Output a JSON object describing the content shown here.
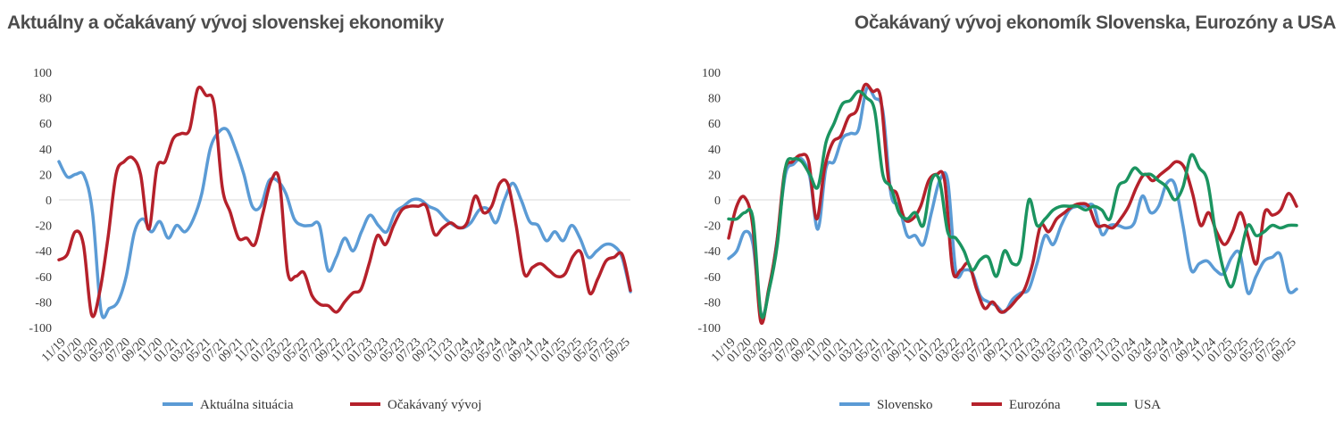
{
  "chart_data": [
    {
      "type": "line",
      "title": "Aktuálny a očakávaný vývoj slovenskej ekonomiky",
      "xlabel": "",
      "ylabel": "",
      "ylim": [
        -100,
        100
      ],
      "yticks": [
        "100",
        "80",
        "60",
        "40",
        "20",
        "0",
        "-20",
        "-40",
        "-60",
        "-80",
        "-100"
      ],
      "xtick_labels": [
        "11/19",
        "01/20",
        "03/20",
        "05/20",
        "07/20",
        "09/20",
        "11/20",
        "01/21",
        "03/21",
        "05/21",
        "07/21",
        "09/21",
        "11/21",
        "01/22",
        "03/22",
        "05/22",
        "07/22",
        "09/22",
        "11/22",
        "01/23",
        "03/23",
        "05/23",
        "07/23",
        "09/23",
        "11/23",
        "01/24",
        "03/24",
        "05/24",
        "07/24",
        "09/24",
        "11/24",
        "01/25",
        "03/25",
        "05/25",
        "07/25",
        "09/25"
      ],
      "grid": false,
      "legend_position": "bottom",
      "series": [
        {
          "name": "Aktuálna situácia",
          "color": "#5b9bd5",
          "values": [
            30,
            18,
            20,
            19,
            -10,
            -87,
            -85,
            -80,
            -60,
            -25,
            -15,
            -25,
            -17,
            -30,
            -20,
            -25,
            -15,
            5,
            40,
            53,
            55,
            40,
            20,
            -5,
            -5,
            15,
            15,
            5,
            -15,
            -20,
            -20,
            -20,
            -55,
            -45,
            -30,
            -40,
            -25,
            -12,
            -20,
            -25,
            -10,
            -5,
            0,
            0,
            -5,
            -8,
            -15,
            -20,
            -22,
            -18,
            -8,
            -7,
            -18,
            0,
            13,
            0,
            -17,
            -20,
            -32,
            -25,
            -32,
            -20,
            -30,
            -45,
            -40,
            -35,
            -36,
            -45,
            -72
          ]
        },
        {
          "name": "Očakávaný vývoj",
          "color": "#b5212b",
          "values": [
            -47,
            -43,
            -25,
            -35,
            -90,
            -72,
            -30,
            20,
            30,
            33,
            20,
            -23,
            25,
            30,
            48,
            52,
            55,
            87,
            82,
            75,
            10,
            -10,
            -30,
            -30,
            -35,
            -10,
            15,
            15,
            -56,
            -60,
            -57,
            -75,
            -82,
            -83,
            -88,
            -80,
            -73,
            -70,
            -50,
            -28,
            -35,
            -20,
            -8,
            -5,
            -5,
            -5,
            -27,
            -22,
            -18,
            -22,
            -18,
            3,
            -10,
            -5,
            13,
            12,
            -20,
            -58,
            -53,
            -50,
            -55,
            -60,
            -58,
            -44,
            -42,
            -73,
            -62,
            -48,
            -45,
            -43,
            -71
          ]
        }
      ]
    },
    {
      "type": "line",
      "title": "Očakávaný vývoj ekonomík Slovenska, Eurozóny a USA",
      "xlabel": "",
      "ylabel": "",
      "ylim": [
        -100,
        100
      ],
      "yticks": [
        "100",
        "80",
        "60",
        "40",
        "20",
        "0",
        "-20",
        "-40",
        "-60",
        "-80",
        "-100"
      ],
      "xtick_labels": [
        "11/19",
        "01/20",
        "03/20",
        "05/20",
        "07/20",
        "09/20",
        "11/20",
        "01/21",
        "03/21",
        "05/21",
        "07/21",
        "09/21",
        "11/21",
        "01/22",
        "03/22",
        "05/22",
        "07/22",
        "09/22",
        "11/22",
        "01/23",
        "03/23",
        "05/23",
        "07/23",
        "09/23",
        "11/23",
        "01/24",
        "03/24",
        "05/24",
        "07/24",
        "09/24",
        "11/24",
        "01/25",
        "03/25",
        "05/25",
        "07/25",
        "09/25"
      ],
      "grid": false,
      "legend_position": "bottom",
      "series": [
        {
          "name": "Slovensko",
          "color": "#5b9bd5",
          "values": [
            -46,
            -40,
            -25,
            -35,
            -90,
            -70,
            -30,
            20,
            28,
            32,
            18,
            -23,
            25,
            30,
            48,
            52,
            55,
            87,
            80,
            70,
            5,
            -5,
            -28,
            -28,
            -35,
            -10,
            15,
            15,
            -56,
            -55,
            -57,
            -75,
            -80,
            -83,
            -88,
            -78,
            -73,
            -70,
            -50,
            -28,
            -35,
            -20,
            -8,
            -5,
            -5,
            -5,
            -27,
            -20,
            -20,
            -22,
            -18,
            3,
            -10,
            -5,
            13,
            12,
            -20,
            -55,
            -50,
            -48,
            -55,
            -58,
            -45,
            -42,
            -73,
            -60,
            -48,
            -45,
            -43,
            -71,
            -70
          ]
        },
        {
          "name": "Eurozóna",
          "color": "#b5212b",
          "values": [
            -30,
            -5,
            2,
            -20,
            -95,
            -70,
            -35,
            22,
            30,
            35,
            30,
            -15,
            25,
            45,
            50,
            65,
            70,
            90,
            85,
            80,
            15,
            5,
            -15,
            -15,
            -5,
            15,
            20,
            15,
            -55,
            -55,
            -50,
            -70,
            -85,
            -80,
            -88,
            -85,
            -78,
            -70,
            -50,
            -20,
            -25,
            -15,
            -10,
            -5,
            -3,
            -5,
            -20,
            -20,
            -22,
            -15,
            -5,
            10,
            20,
            15,
            20,
            25,
            30,
            25,
            5,
            -20,
            -10,
            -25,
            -35,
            -25,
            -10,
            -30,
            -50,
            -10,
            -12,
            -8,
            5,
            -5
          ]
        },
        {
          "name": "USA",
          "color": "#1b9460",
          "values": [
            -15,
            -15,
            -10,
            -15,
            -90,
            -70,
            -35,
            25,
            32,
            30,
            20,
            10,
            45,
            60,
            75,
            78,
            85,
            80,
            70,
            20,
            10,
            -10,
            -15,
            -10,
            -20,
            15,
            15,
            -25,
            -30,
            -40,
            -55,
            -47,
            -45,
            -60,
            -40,
            -50,
            -45,
            0,
            -20,
            -15,
            -8,
            -5,
            -5,
            -5,
            -8,
            -5,
            -8,
            -15,
            10,
            15,
            25,
            20,
            20,
            15,
            10,
            0,
            10,
            35,
            25,
            15,
            -25,
            -55,
            -68,
            -45,
            -20,
            -28,
            -25,
            -20,
            -22,
            -20,
            -20
          ]
        }
      ]
    }
  ]
}
